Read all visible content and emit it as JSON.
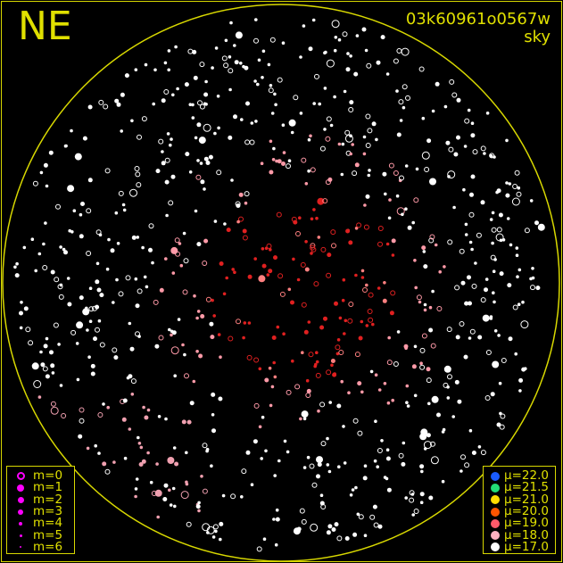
{
  "header": {
    "direction": "NE",
    "frame_id": "03k60961o0567w",
    "label": "sky"
  },
  "magnitude_legend": {
    "color": "#ff00ff",
    "items": [
      {
        "label": "m=0",
        "style": "ring"
      },
      {
        "label": "m=1",
        "style": "filled"
      },
      {
        "label": "m=2",
        "style": "filled"
      },
      {
        "label": "m=3",
        "style": "filled"
      },
      {
        "label": "m=4",
        "style": "filled"
      },
      {
        "label": "m=5",
        "style": "filled"
      },
      {
        "label": "m=6",
        "style": "filled"
      }
    ]
  },
  "brightness_legend": {
    "items": [
      {
        "label": "μ=22.0",
        "color": "#1a5cff"
      },
      {
        "label": "μ=21.5",
        "color": "#22dd77"
      },
      {
        "label": "μ=21.0",
        "color": "#ffdd00"
      },
      {
        "label": "μ=20.0",
        "color": "#ff5500"
      },
      {
        "label": "μ=19.0",
        "color": "#ff5a6a"
      },
      {
        "label": "μ=18.0",
        "color": "#ffb0c0"
      },
      {
        "label": "μ=17.0",
        "color": "#ffffff"
      }
    ]
  },
  "colors": {
    "horizon": "#d8d800",
    "text": "#e0e000",
    "background": "#000000"
  }
}
